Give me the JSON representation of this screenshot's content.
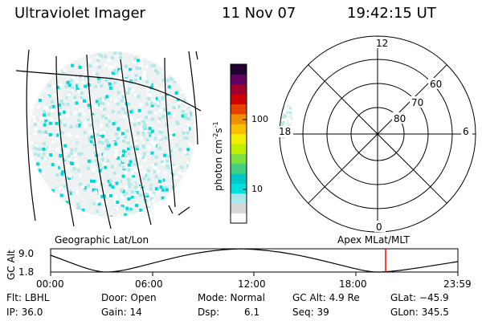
{
  "header": {
    "instrument": "Ultraviolet Imager",
    "date": "11 Nov 07",
    "time": "19:42:15 UT"
  },
  "colorbar": {
    "unit_label": "photon cm",
    "unit_exp1": "-2",
    "unit_mid": "s",
    "unit_exp2": "-1",
    "ticks": [
      "100",
      "10"
    ],
    "colors": [
      "#ffffff",
      "#d8d8d8",
      "#a8e8e8",
      "#00e0e0",
      "#00c8c8",
      "#40d080",
      "#80e040",
      "#c0f000",
      "#f0f000",
      "#f8c000",
      "#f09000",
      "#e84000",
      "#d00000",
      "#a00030",
      "#600060",
      "#200030"
    ]
  },
  "polar_plot": {
    "labels": {
      "top": "12",
      "bottom": "0",
      "left": "18",
      "right": "6"
    },
    "lat_labels": [
      "60",
      "70",
      "80"
    ]
  },
  "labels": {
    "geographic": "Geographic Lat/Lon",
    "apex": "Apex MLat/MLT",
    "gc_alt_axis": "GC Alt"
  },
  "altitude_plot": {
    "ymax": "9.0",
    "ymin": "1.8",
    "xticks": [
      "00:00",
      "06:00",
      "12:00",
      "18:00",
      "23:59"
    ],
    "marker_color": "#ff0000"
  },
  "info": {
    "flt": "Flt: LBHL",
    "ip": "IP: 36.0",
    "door": "Door: Open",
    "gain": "Gain: 14",
    "mode": "Mode: Normal",
    "dsp_label": "Dsp:",
    "dsp_value": "6.1",
    "gc_alt": "GC Alt: 4.9 Re",
    "seq": "Seq: 39",
    "glat": "GLat: −45.9",
    "glon": "GLon: 345.5"
  },
  "colors": {
    "aurora_light": "#e8f0f0",
    "aurora_mid": "#b0e8e8",
    "aurora_cyan": "#00d8d8"
  }
}
